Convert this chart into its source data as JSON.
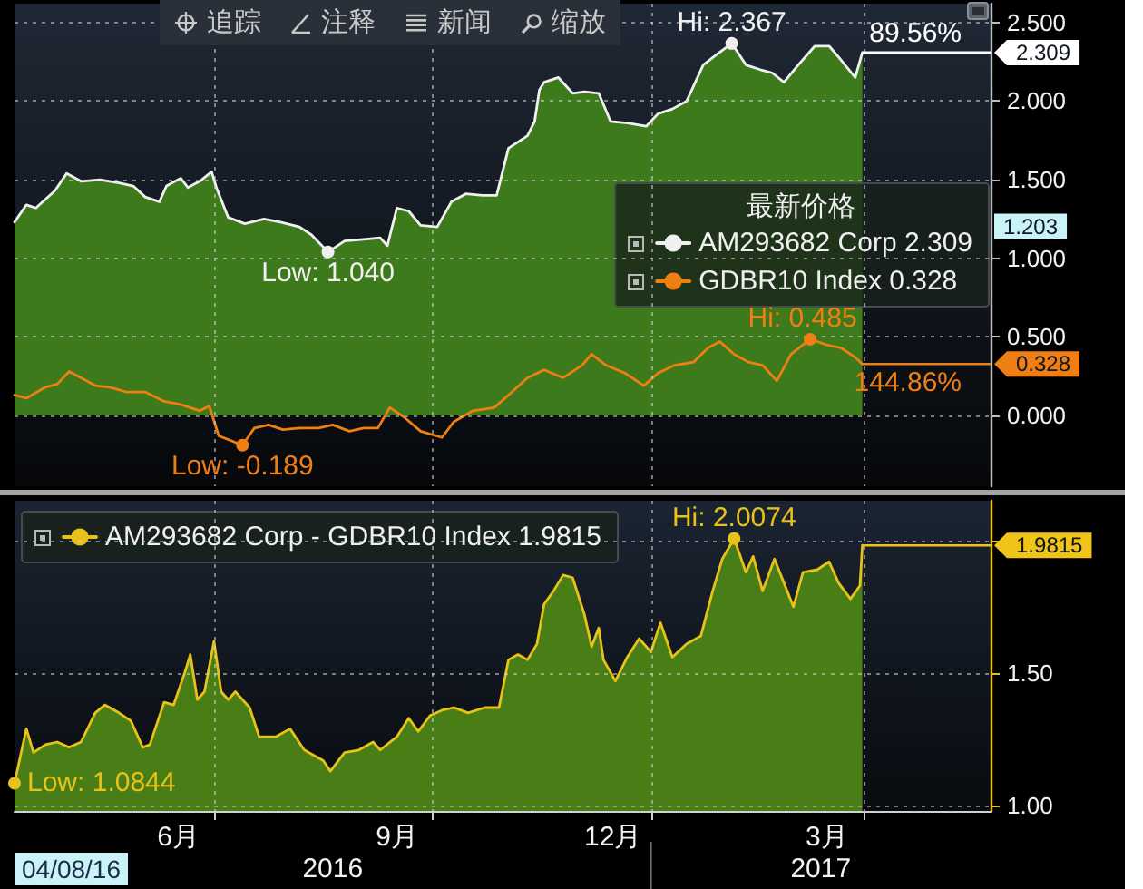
{
  "chart_data": [
    {
      "type": "area",
      "legend": "right",
      "legend_title": "最新价格",
      "grid": true,
      "tick_labels": "y",
      "xlim": [
        "2016-04-08",
        "2017-05-24"
      ],
      "xticks": [
        {
          "value": "2016-07-01",
          "label": null
        },
        {
          "value": "2016-10-01",
          "label": null
        },
        {
          "value": "2017-01-01",
          "label": null
        },
        {
          "value": "2017-04-01",
          "label": null
        }
      ],
      "ylim": [
        -0.45,
        2.62
      ],
      "yticks": [
        {
          "value": 0,
          "label": "0.000"
        },
        {
          "value": 0.5,
          "label": "0.500"
        },
        {
          "value": 1,
          "label": "1.000"
        },
        {
          "value": 1.5,
          "label": "1.500"
        },
        {
          "value": 2,
          "label": "2.000"
        },
        {
          "value": 2.5,
          "label": "2.500"
        }
      ],
      "series": [
        {
          "name": "AM293682 Corp 2.309",
          "color": "#f0f0f0",
          "x": [
            "2016-04-08",
            "2016-04-13",
            "2016-04-17",
            "2016-04-25",
            "2016-04-30",
            "2016-05-06",
            "2016-05-14",
            "2016-05-22",
            "2016-05-28",
            "2016-06-02",
            "2016-06-08",
            "2016-06-11",
            "2016-06-17",
            "2016-06-20",
            "2016-06-25",
            "2016-06-30",
            "2016-07-02",
            "2016-07-07",
            "2016-07-14",
            "2016-07-22",
            "2016-07-29",
            "2016-08-06",
            "2016-08-11",
            "2016-08-18",
            "2016-08-25",
            "2016-09-02",
            "2016-09-09",
            "2016-09-12",
            "2016-09-16",
            "2016-09-21",
            "2016-09-26",
            "2016-10-03",
            "2016-10-09",
            "2016-10-15",
            "2016-10-22",
            "2016-10-28",
            "2016-11-02",
            "2016-11-10",
            "2016-11-13",
            "2016-11-15",
            "2016-11-17",
            "2016-11-23",
            "2016-11-29",
            "2016-12-04",
            "2016-12-10",
            "2016-12-15",
            "2016-12-22",
            "2016-12-30",
            "2017-01-04",
            "2017-01-10",
            "2017-01-16",
            "2017-01-23",
            "2017-01-29",
            "2017-02-04",
            "2017-02-10",
            "2017-02-16",
            "2017-02-21",
            "2017-02-26",
            "2017-03-04",
            "2017-03-11",
            "2017-03-17",
            "2017-03-21",
            "2017-03-28",
            "2017-03-31"
          ],
          "values": [
            1.23,
            1.34,
            1.32,
            1.43,
            1.54,
            1.49,
            1.5,
            1.48,
            1.46,
            1.39,
            1.36,
            1.46,
            1.51,
            1.45,
            1.49,
            1.55,
            1.45,
            1.26,
            1.22,
            1.25,
            1.23,
            1.2,
            1.15,
            1.04,
            1.11,
            1.12,
            1.13,
            1.08,
            1.32,
            1.3,
            1.21,
            1.2,
            1.36,
            1.41,
            1.4,
            1.4,
            1.7,
            1.78,
            1.87,
            2.07,
            2.12,
            2.15,
            2.05,
            2.06,
            2.05,
            1.87,
            1.86,
            1.84,
            1.92,
            1.95,
            2.0,
            2.23,
            2.3,
            2.367,
            2.23,
            2.2,
            2.18,
            2.12,
            2.23,
            2.35,
            2.35,
            2.28,
            2.15,
            2.309
          ]
        },
        {
          "name": "GDBR10 Index 0.328",
          "type": "line",
          "color": "#f07f13",
          "x": [
            "2016-04-08",
            "2016-04-13",
            "2016-04-21",
            "2016-04-26",
            "2016-05-01",
            "2016-05-06",
            "2016-05-12",
            "2016-05-18",
            "2016-05-25",
            "2016-06-02",
            "2016-06-10",
            "2016-06-17",
            "2016-06-25",
            "2016-06-29",
            "2016-07-03",
            "2016-07-13",
            "2016-07-18",
            "2016-07-24",
            "2016-07-30",
            "2016-08-06",
            "2016-08-14",
            "2016-08-20",
            "2016-08-27",
            "2016-09-02",
            "2016-09-08",
            "2016-09-13",
            "2016-09-19",
            "2016-09-26",
            "2016-10-05",
            "2016-10-10",
            "2016-10-18",
            "2016-10-27",
            "2016-11-02",
            "2016-11-10",
            "2016-11-17",
            "2016-11-25",
            "2016-12-03",
            "2016-12-07",
            "2016-12-13",
            "2016-12-21",
            "2016-12-29",
            "2017-01-04",
            "2017-01-11",
            "2017-01-19",
            "2017-01-25",
            "2017-01-30",
            "2017-02-05",
            "2017-02-11",
            "2017-02-17",
            "2017-02-23",
            "2017-03-01",
            "2017-03-09",
            "2017-03-16",
            "2017-03-22",
            "2017-03-28",
            "2017-03-31"
          ],
          "values": [
            0.13,
            0.11,
            0.18,
            0.2,
            0.28,
            0.24,
            0.19,
            0.18,
            0.15,
            0.15,
            0.09,
            0.07,
            0.03,
            0.06,
            -0.13,
            -0.189,
            -0.08,
            -0.06,
            -0.09,
            -0.08,
            -0.08,
            -0.06,
            -0.1,
            -0.08,
            -0.08,
            0.05,
            -0.01,
            -0.1,
            -0.14,
            -0.04,
            0.03,
            0.05,
            0.13,
            0.24,
            0.29,
            0.24,
            0.32,
            0.39,
            0.32,
            0.27,
            0.19,
            0.27,
            0.32,
            0.34,
            0.43,
            0.47,
            0.39,
            0.34,
            0.32,
            0.22,
            0.39,
            0.485,
            0.45,
            0.43,
            0.37,
            0.328
          ]
        }
      ],
      "ref_lines": [
        {
          "axis": "y",
          "value": 2.309,
          "label": "2.309",
          "color": "#ffffff"
        },
        {
          "axis": "y",
          "value": 0.328,
          "label": "0.328",
          "color": "#f07f13"
        }
      ],
      "annotations": [
        "追踪",
        "注释",
        "新闻",
        "缩放",
        {
          "text": "89.56%",
          "y": 2.309
        },
        {
          "text": "144.86%",
          "y": 0.328
        },
        {
          "text": "1.203",
          "y": 1.203
        },
        {
          "text": "Hi: 2.367",
          "x": "2017-02-04",
          "y": 2.367
        },
        {
          "text": "Low: 1.040",
          "x": "2016-08-18",
          "y": 1.04
        },
        {
          "text": "Low: -0.189",
          "x": "2016-07-13",
          "y": -0.189
        },
        {
          "text": "Hi: 0.485",
          "x": "2017-03-09",
          "y": 0.485
        }
      ]
    },
    {
      "type": "area",
      "legend": "top left",
      "grid": true,
      "xlim": [
        "2016-04-08",
        "2017-05-24"
      ],
      "xticks": [
        {
          "value": "2016-06-16",
          "label": "6月"
        },
        {
          "value": "2016-07-01",
          "label": null
        },
        {
          "value": "2016-09-16",
          "label": "9月"
        },
        {
          "value": "2016-10-01",
          "label": null
        },
        {
          "value": "2016-12-16",
          "label": "12月"
        },
        {
          "value": "2017-01-01",
          "label": null
        },
        {
          "value": "2017-03-16",
          "label": "3月"
        },
        {
          "value": "2017-04-01",
          "label": null
        }
      ],
      "ylim": [
        0.98,
        2.15
      ],
      "yticks": [
        {
          "value": 1,
          "label": "1.00"
        },
        {
          "value": 1.5,
          "label": "1.50"
        },
        {
          "value": 2,
          "label": null
        }
      ],
      "series": [
        {
          "name": "AM293682 Corp - GDBR10 Index 1.9815",
          "color": "#e8c21a",
          "x": [
            "2016-04-08",
            "2016-04-13",
            "2016-04-16",
            "2016-04-21",
            "2016-04-26",
            "2016-05-01",
            "2016-05-06",
            "2016-05-12",
            "2016-05-16",
            "2016-05-22",
            "2016-05-27",
            "2016-06-01",
            "2016-06-04",
            "2016-06-10",
            "2016-06-14",
            "2016-06-19",
            "2016-06-21",
            "2016-06-24",
            "2016-06-27",
            "2016-07-01",
            "2016-07-04",
            "2016-07-07",
            "2016-07-10",
            "2016-07-16",
            "2016-07-20",
            "2016-07-27",
            "2016-08-02",
            "2016-08-08",
            "2016-08-16",
            "2016-08-19",
            "2016-08-25",
            "2016-08-31",
            "2016-09-06",
            "2016-09-09",
            "2016-09-16",
            "2016-09-21",
            "2016-09-25",
            "2016-09-30",
            "2016-10-05",
            "2016-10-10",
            "2016-10-16",
            "2016-10-23",
            "2016-10-29",
            "2016-11-02",
            "2016-11-06",
            "2016-11-10",
            "2016-11-14",
            "2016-11-17",
            "2016-11-21",
            "2016-11-25",
            "2016-11-29",
            "2016-12-04",
            "2016-12-07",
            "2016-12-10",
            "2016-12-12",
            "2016-12-17",
            "2016-12-22",
            "2016-12-27",
            "2017-01-01",
            "2017-01-05",
            "2017-01-10",
            "2017-01-16",
            "2017-01-22",
            "2017-01-27",
            "2017-01-31",
            "2017-02-05",
            "2017-02-10",
            "2017-02-13",
            "2017-02-17",
            "2017-02-22",
            "2017-02-26",
            "2017-03-02",
            "2017-03-06",
            "2017-03-12",
            "2017-03-17",
            "2017-03-21",
            "2017-03-26",
            "2017-03-30",
            "2017-03-31"
          ],
          "values": [
            1.0844,
            1.29,
            1.2,
            1.23,
            1.24,
            1.22,
            1.24,
            1.35,
            1.38,
            1.35,
            1.32,
            1.22,
            1.23,
            1.39,
            1.38,
            1.51,
            1.57,
            1.4,
            1.43,
            1.62,
            1.43,
            1.4,
            1.43,
            1.37,
            1.26,
            1.26,
            1.29,
            1.21,
            1.17,
            1.13,
            1.2,
            1.21,
            1.24,
            1.21,
            1.26,
            1.33,
            1.28,
            1.34,
            1.36,
            1.37,
            1.35,
            1.37,
            1.37,
            1.55,
            1.57,
            1.55,
            1.61,
            1.76,
            1.81,
            1.87,
            1.86,
            1.72,
            1.6,
            1.67,
            1.55,
            1.47,
            1.56,
            1.63,
            1.58,
            1.69,
            1.56,
            1.61,
            1.64,
            1.81,
            1.93,
            2.0074,
            1.88,
            1.94,
            1.81,
            1.93,
            1.84,
            1.75,
            1.88,
            1.89,
            1.92,
            1.84,
            1.78,
            1.83,
            1.9815
          ]
        }
      ],
      "ref_lines": [
        {
          "axis": "y",
          "value": 1.9815,
          "label": "1.9815",
          "color": "#f0c419"
        }
      ],
      "annotations": [
        "04/08/16",
        "2016",
        "2017",
        {
          "text": "Low: 1.0844",
          "x": "2016-04-08",
          "y": 1.0844
        },
        {
          "text": "Hi: 2.0074",
          "x": "2017-02-05",
          "y": 2.0074
        }
      ]
    }
  ]
}
